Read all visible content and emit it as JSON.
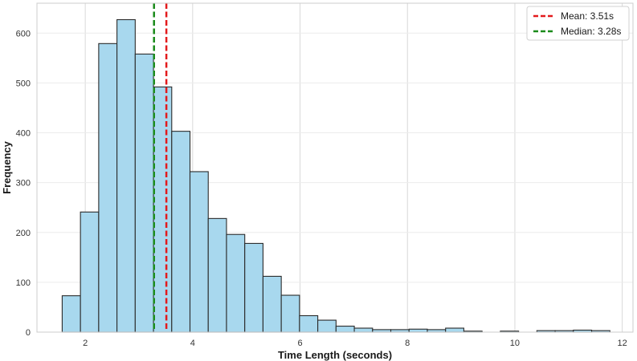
{
  "chart_data": {
    "type": "bar",
    "subtype": "histogram",
    "title": "",
    "xlabel": "Time Length (seconds)",
    "ylabel": "Frequency",
    "xlim": [
      1.1,
      12.2
    ],
    "ylim": [
      0,
      660
    ],
    "x_ticks": [
      2,
      4,
      6,
      8,
      10,
      12
    ],
    "y_ticks": [
      0,
      100,
      200,
      300,
      400,
      500,
      600
    ],
    "grid": true,
    "bin_edges": [
      1.57,
      1.91,
      2.25,
      2.59,
      2.93,
      3.27,
      3.61,
      3.95,
      4.29,
      4.63,
      4.97,
      5.31,
      5.65,
      5.99,
      6.33,
      6.67,
      7.01,
      7.35,
      7.69,
      8.03,
      8.37,
      8.71,
      9.05,
      9.39,
      9.73,
      10.07,
      10.41,
      10.75,
      11.09,
      11.43,
      11.77
    ],
    "counts": [
      73,
      241,
      579,
      627,
      558,
      492,
      403,
      322,
      228,
      196,
      178,
      112,
      74,
      33,
      24,
      12,
      8,
      5,
      5,
      6,
      5,
      8,
      2,
      0,
      2,
      0,
      3,
      3,
      4,
      3
    ],
    "bar_color": "#a8d8ee",
    "bar_edge_color": "#2b2b2b",
    "reference_lines": [
      {
        "label": "Mean: 3.51s",
        "x": 3.51,
        "color": "#e31a1c",
        "style": "dashed"
      },
      {
        "label": "Median: 3.28s",
        "x": 3.28,
        "color": "#1a8a1a",
        "style": "dashed"
      }
    ],
    "legend_position": "top-right"
  }
}
